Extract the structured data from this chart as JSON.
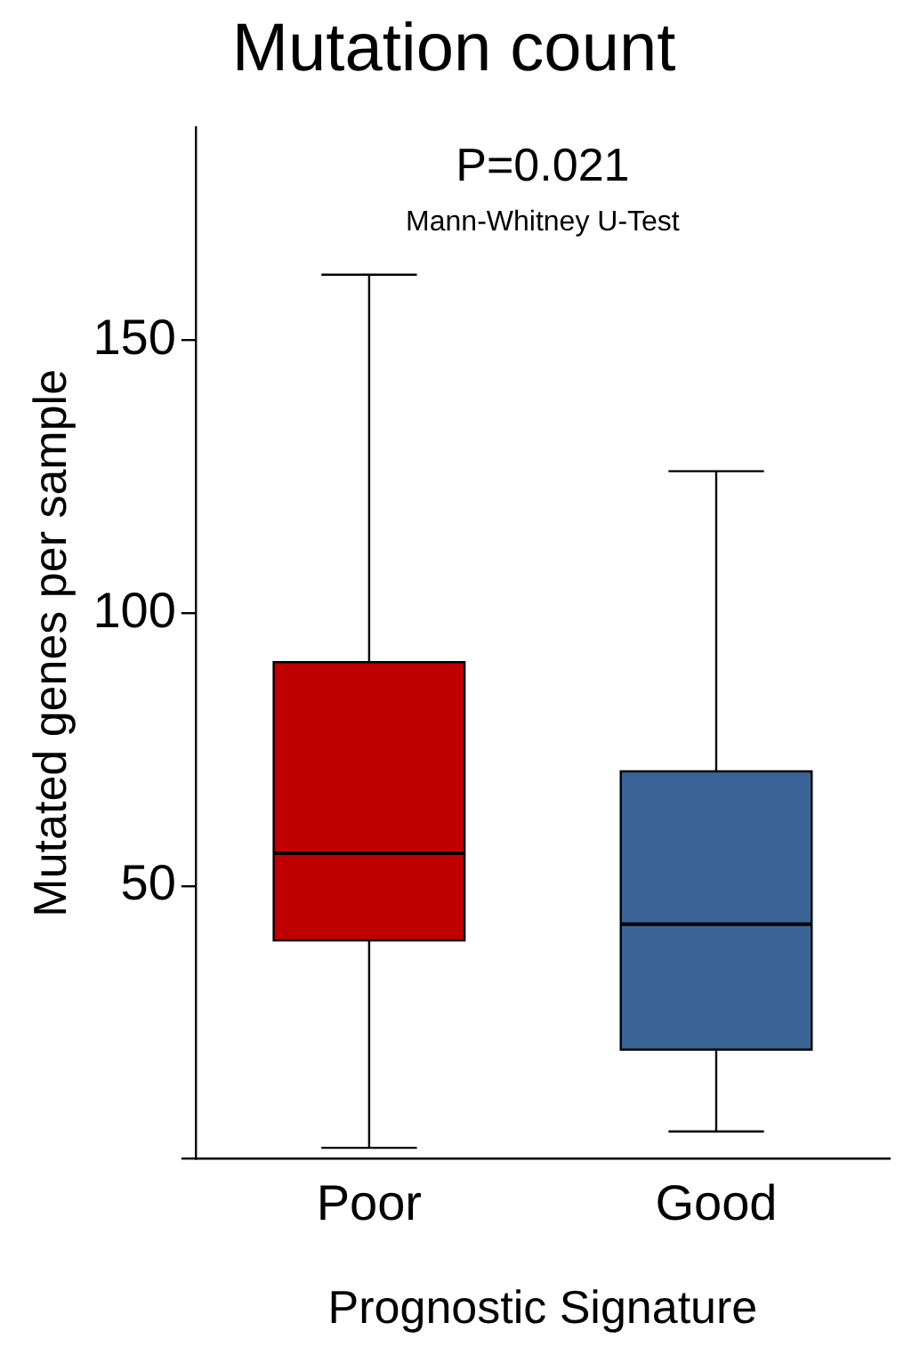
{
  "chart_data": {
    "type": "box",
    "title": "Mutation count",
    "xlabel": "Prognostic Signature",
    "ylabel": "Mutated genes per sample",
    "categories": [
      "Poor",
      "Good"
    ],
    "colors": [
      "#c00000",
      "#3a6496"
    ],
    "boxes": [
      {
        "low": 2,
        "q1": 40,
        "median": 56,
        "q3": 91,
        "high": 162
      },
      {
        "low": 5,
        "q1": 20,
        "median": 43,
        "q3": 71,
        "high": 126
      }
    ],
    "ylim": [
      0,
      189
    ],
    "yticks": [
      {
        "value": 0,
        "label": null
      },
      50,
      100,
      150
    ],
    "annotations": [
      "P=0.021",
      "Mann-Whitney U-Test"
    ]
  }
}
